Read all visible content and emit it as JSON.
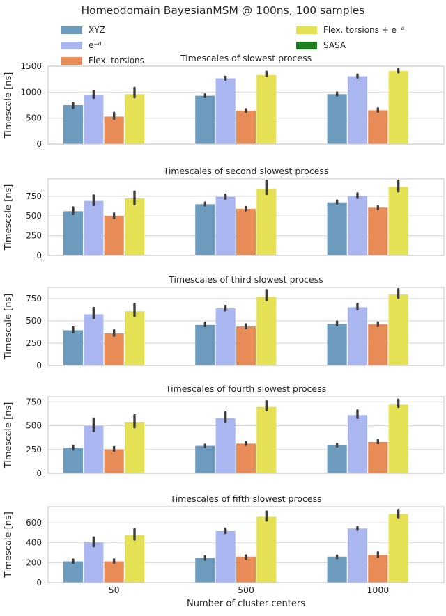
{
  "title": "Homeodomain BayesianMSM @ 100ns, 100 samples",
  "xlabel": "Number of cluster centers",
  "ylabel": "Timescale [ns]",
  "categories": [
    "50",
    "500",
    "1000"
  ],
  "colors": {
    "xyz": "#6d9bbd",
    "e_d": "#aab6ef",
    "flex_torsions": "#e78b57",
    "flex_torsions_e_d": "#e4e155",
    "sasa": "#1e7d1e",
    "errorbar": "#3d3d3d",
    "grid": "#dcdcdc",
    "spine": "#cfcfcf",
    "text": "#262626"
  },
  "legend": {
    "columns": [
      {
        "items": [
          {
            "label": "XYZ",
            "color": "#6d9bbd"
          },
          {
            "label": "e⁻ᵈ",
            "color": "#aab6ef"
          },
          {
            "label": "Flex. torsions",
            "color": "#e78b57"
          }
        ]
      },
      {
        "items": [
          {
            "label": "Flex. torsions + e⁻ᵈ",
            "color": "#e4e155"
          },
          {
            "label": "SASA",
            "color": "#1e7d1e"
          }
        ]
      }
    ]
  },
  "chart_data": [
    {
      "type": "bar",
      "title": "Timescales of slowest process",
      "ylabel": "Timescale [ns]",
      "categories": [
        "50",
        "500",
        "1000"
      ],
      "yticks": [
        0,
        500,
        1000,
        1500
      ],
      "ylim": [
        0,
        1500
      ],
      "legend_position": "figure-top",
      "grid": true,
      "series": [
        {
          "name": "XYZ",
          "color": "#6d9bbd",
          "values": [
            750,
            930,
            960
          ],
          "err_lo": [
            700,
            905,
            935
          ],
          "err_hi": [
            790,
            955,
            990
          ]
        },
        {
          "name": "e⁻ᵈ",
          "color": "#aab6ef",
          "values": [
            950,
            1265,
            1305
          ],
          "err_lo": [
            890,
            1240,
            1280
          ],
          "err_hi": [
            1020,
            1295,
            1335
          ]
        },
        {
          "name": "Flex. torsions",
          "color": "#e78b57",
          "values": [
            530,
            645,
            650
          ],
          "err_lo": [
            485,
            620,
            625
          ],
          "err_hi": [
            600,
            670,
            685
          ]
        },
        {
          "name": "Flex. torsions + e⁻ᵈ",
          "color": "#e4e155",
          "values": [
            960,
            1330,
            1405
          ],
          "err_lo": [
            900,
            1305,
            1380
          ],
          "err_hi": [
            1080,
            1390,
            1445
          ]
        },
        {
          "name": "SASA",
          "color": "#1e7d1e",
          "values": [
            0,
            0,
            0
          ]
        }
      ]
    },
    {
      "type": "bar",
      "title": "Timescales of second slowest process",
      "ylabel": "Timescale [ns]",
      "categories": [
        "50",
        "500",
        "1000"
      ],
      "yticks": [
        0,
        250,
        500,
        750
      ],
      "ylim": [
        0,
        968
      ],
      "grid": true,
      "series": [
        {
          "name": "XYZ",
          "color": "#6d9bbd",
          "values": [
            560,
            648,
            672
          ],
          "err_lo": [
            525,
            632,
            655
          ],
          "err_hi": [
            608,
            668,
            693
          ]
        },
        {
          "name": "e⁻ᵈ",
          "color": "#aab6ef",
          "values": [
            690,
            743,
            752
          ],
          "err_lo": [
            638,
            718,
            728
          ],
          "err_hi": [
            758,
            770,
            785
          ]
        },
        {
          "name": "Flex. torsions",
          "color": "#e78b57",
          "values": [
            500,
            590,
            605
          ],
          "err_lo": [
            472,
            572,
            588
          ],
          "err_hi": [
            530,
            612,
            622
          ]
        },
        {
          "name": "Flex. torsions + e⁻ᵈ",
          "color": "#e4e155",
          "values": [
            722,
            840,
            868
          ],
          "err_lo": [
            648,
            778,
            812
          ],
          "err_hi": [
            808,
            945,
            945
          ]
        },
        {
          "name": "SASA",
          "color": "#1e7d1e",
          "values": [
            0,
            0,
            0
          ]
        }
      ]
    },
    {
      "type": "bar",
      "title": "Timescales of third slowest process",
      "ylabel": "Timescale [ns]",
      "categories": [
        "50",
        "500",
        "1000"
      ],
      "yticks": [
        0,
        250,
        500,
        750
      ],
      "ylim": [
        0,
        875
      ],
      "grid": true,
      "series": [
        {
          "name": "XYZ",
          "color": "#6d9bbd",
          "values": [
            395,
            455,
            468
          ],
          "err_lo": [
            372,
            440,
            450
          ],
          "err_hi": [
            425,
            478,
            492
          ]
        },
        {
          "name": "e⁻ᵈ",
          "color": "#aab6ef",
          "values": [
            575,
            640,
            653
          ],
          "err_lo": [
            532,
            618,
            630
          ],
          "err_hi": [
            645,
            668,
            690
          ]
        },
        {
          "name": "Flex. torsions",
          "color": "#e78b57",
          "values": [
            360,
            437,
            460
          ],
          "err_lo": [
            335,
            420,
            443
          ],
          "err_hi": [
            395,
            460,
            482
          ]
        },
        {
          "name": "Flex. torsions + e⁻ᵈ",
          "color": "#e4e155",
          "values": [
            608,
            770,
            797
          ],
          "err_lo": [
            555,
            732,
            760
          ],
          "err_hi": [
            690,
            845,
            855
          ]
        },
        {
          "name": "SASA",
          "color": "#1e7d1e",
          "values": [
            0,
            0,
            0
          ]
        }
      ]
    },
    {
      "type": "bar",
      "title": "Timescales of fourth slowest process",
      "ylabel": "Timescale [ns]",
      "categories": [
        "50",
        "500",
        "1000"
      ],
      "yticks": [
        0,
        250,
        500,
        750
      ],
      "ylim": [
        0,
        804
      ],
      "grid": true,
      "series": [
        {
          "name": "XYZ",
          "color": "#6d9bbd",
          "values": [
            265,
            288,
            295
          ],
          "err_lo": [
            250,
            276,
            283
          ],
          "err_hi": [
            288,
            300,
            307
          ]
        },
        {
          "name": "e⁻ᵈ",
          "color": "#aab6ef",
          "values": [
            500,
            580,
            612
          ],
          "err_lo": [
            445,
            538,
            583
          ],
          "err_hi": [
            575,
            640,
            660
          ]
        },
        {
          "name": "Flex. torsions",
          "color": "#e78b57",
          "values": [
            252,
            312,
            330
          ],
          "err_lo": [
            237,
            300,
            316
          ],
          "err_hi": [
            275,
            327,
            350
          ]
        },
        {
          "name": "Flex. torsions + e⁻ᵈ",
          "color": "#e4e155",
          "values": [
            535,
            697,
            722
          ],
          "err_lo": [
            484,
            662,
            698
          ],
          "err_hi": [
            610,
            755,
            772
          ]
        },
        {
          "name": "SASA",
          "color": "#1e7d1e",
          "values": [
            0,
            0,
            0
          ]
        }
      ]
    },
    {
      "type": "bar",
      "title": "Timescales of fifth slowest process",
      "ylabel": "Timescale [ns]",
      "categories": [
        "50",
        "500",
        "1000"
      ],
      "yticks": [
        0,
        200,
        400,
        600
      ],
      "ylim": [
        0,
        761
      ],
      "grid": true,
      "series": [
        {
          "name": "XYZ",
          "color": "#6d9bbd",
          "values": [
            213,
            248,
            260
          ],
          "err_lo": [
            198,
            230,
            246
          ],
          "err_hi": [
            230,
            263,
            270
          ]
        },
        {
          "name": "e⁻ᵈ",
          "color": "#aab6ef",
          "values": [
            405,
            517,
            543
          ],
          "err_lo": [
            365,
            498,
            530
          ],
          "err_hi": [
            452,
            542,
            558
          ]
        },
        {
          "name": "Flex. torsions",
          "color": "#e78b57",
          "values": [
            213,
            260,
            280
          ],
          "err_lo": [
            198,
            242,
            258
          ],
          "err_hi": [
            232,
            272,
            302
          ]
        },
        {
          "name": "Flex. torsions + e⁻ᵈ",
          "color": "#e4e155",
          "values": [
            478,
            660,
            688
          ],
          "err_lo": [
            432,
            622,
            655
          ],
          "err_hi": [
            537,
            712,
            728
          ]
        },
        {
          "name": "SASA",
          "color": "#1e7d1e",
          "values": [
            0,
            0,
            0
          ]
        }
      ]
    }
  ]
}
